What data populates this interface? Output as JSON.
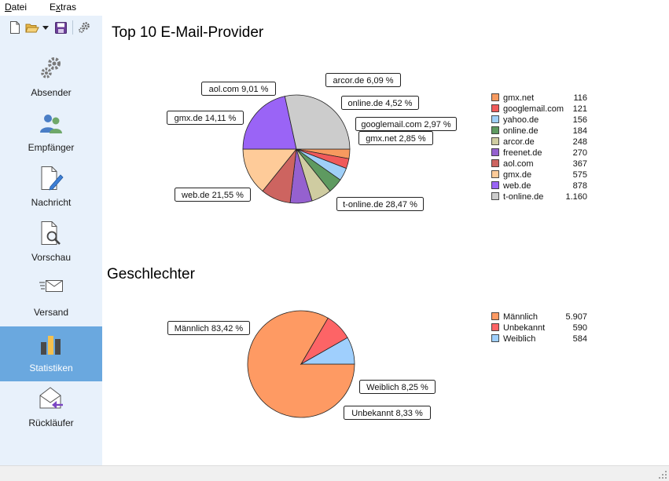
{
  "menu": [
    {
      "label": "Datei",
      "accel": "D"
    },
    {
      "label": "Extras",
      "accel": "x"
    }
  ],
  "toolbar": [
    {
      "icon": "new-document-icon"
    },
    {
      "icon": "open-folder-icon"
    },
    {
      "icon": "dropdown-arrow-icon"
    },
    {
      "icon": "save-icon"
    },
    {
      "icon": "settings-gear-icon"
    }
  ],
  "sidebar": {
    "items": [
      {
        "label": "Absender",
        "icon": "gears-icon",
        "active": false
      },
      {
        "label": "Empfänger",
        "icon": "users-icon",
        "active": false
      },
      {
        "label": "Nachricht",
        "icon": "document-pen-icon",
        "active": false
      },
      {
        "label": "Vorschau",
        "icon": "document-magnifier-icon",
        "active": false
      },
      {
        "label": "Versand",
        "icon": "envelope-send-icon",
        "active": false
      },
      {
        "label": "Statistiken",
        "icon": "bar-chart-icon",
        "active": true
      },
      {
        "label": "Rückläufer",
        "icon": "envelope-return-icon",
        "active": false
      }
    ]
  },
  "colors": {
    "sidebar_bg": "#e8f1fb",
    "active_item_bg": "#6aa8df"
  },
  "chart_data": [
    {
      "type": "pie",
      "title": "Top 10 E-Mail-Provider",
      "slices": [
        {
          "name": "gmx.net",
          "value": 116,
          "percent_label": "2,85 %",
          "color": "#f79a5f"
        },
        {
          "name": "googlemail.com",
          "value": 121,
          "percent_label": "2,97 %",
          "color": "#f05a5a"
        },
        {
          "name": "yahoo.de",
          "value": 156,
          "percent_label": "",
          "color": "#9fcff8"
        },
        {
          "name": "online.de",
          "value": 184,
          "percent_label": "4,52 %",
          "color": "#5e9a60"
        },
        {
          "name": "arcor.de",
          "value": 248,
          "percent_label": "6,09 %",
          "color": "#cfcca1"
        },
        {
          "name": "freenet.de",
          "value": 270,
          "percent_label": "",
          "color": "#9561cf"
        },
        {
          "name": "aol.com",
          "value": 367,
          "percent_label": "9,01 %",
          "color": "#cd6460"
        },
        {
          "name": "gmx.de",
          "value": 575,
          "percent_label": "14,11 %",
          "color": "#fecb99"
        },
        {
          "name": "web.de",
          "value": 878,
          "percent_label": "21,55 %",
          "color": "#9a64f6"
        },
        {
          "name": "t-online.de",
          "value": 1160,
          "value_label": "1.160",
          "percent_label": "28,47 %",
          "color": "#cccccc"
        }
      ]
    },
    {
      "type": "pie",
      "title": "Geschlechter",
      "slices": [
        {
          "name": "Männlich",
          "value": 5907,
          "value_label": "5.907",
          "percent_label": "83,42 %",
          "color": "#fe9a63"
        },
        {
          "name": "Unbekannt",
          "value": 590,
          "percent_label": "8,33 %",
          "color": "#fd6466"
        },
        {
          "name": "Weiblich",
          "value": 584,
          "percent_label": "8,25 %",
          "color": "#9fcffd"
        }
      ]
    }
  ]
}
